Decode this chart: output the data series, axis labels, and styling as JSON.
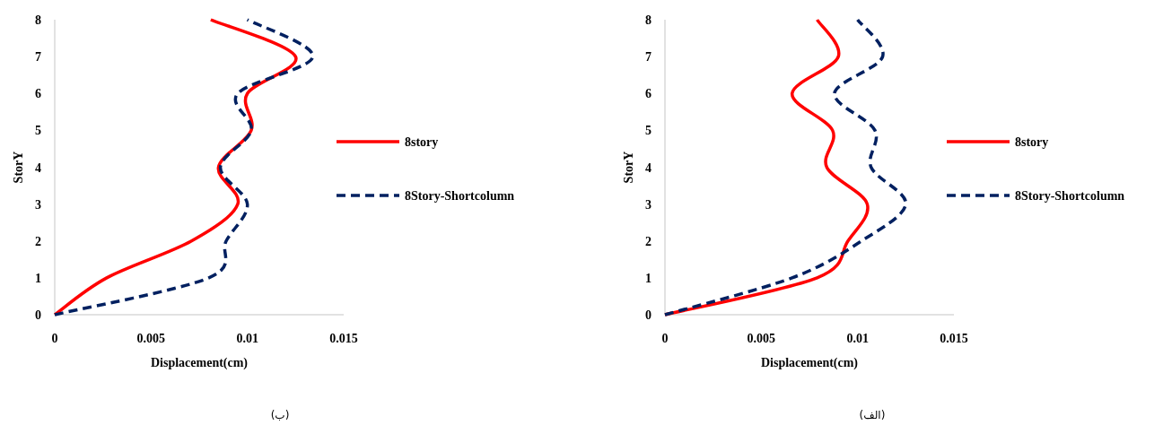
{
  "chart_data": [
    {
      "type": "line",
      "xlabel": "Displacement(cm)",
      "ylabel": "StorY",
      "xlim": [
        0,
        0.015
      ],
      "ylim": [
        0,
        8
      ],
      "xticks": [
        0,
        0.005,
        0.01,
        0.015
      ],
      "yticks": [
        0,
        1,
        2,
        3,
        4,
        5,
        6,
        7,
        8
      ],
      "legend": "right",
      "marker": "none",
      "grid": false,
      "annotations": [
        "(ب)"
      ],
      "series": [
        {
          "name": "8story",
          "color": "#ff0000",
          "line_style": "solid",
          "x": [
            0,
            0.0027,
            0.0071,
            0.0095,
            0.0085,
            0.0102,
            0.01,
            0.0125,
            0.0081
          ],
          "values": [
            0,
            1,
            2,
            3,
            4,
            5,
            6,
            7,
            8
          ]
        },
        {
          "name": "8Story-Shortcolumn",
          "color": "#002060",
          "line_style": "dashed",
          "x": [
            0,
            0.008,
            0.0089,
            0.01,
            0.0086,
            0.0102,
            0.0095,
            0.0134,
            0.01
          ],
          "values": [
            0,
            1,
            2,
            3,
            4,
            5,
            6,
            7,
            8
          ]
        }
      ]
    },
    {
      "type": "line",
      "xlabel": "Displacement(cm)",
      "ylabel": "StorY",
      "xlim": [
        0,
        0.015
      ],
      "ylim": [
        0,
        8
      ],
      "xticks": [
        0,
        0.005,
        0.01,
        0.015
      ],
      "yticks": [
        0,
        1,
        2,
        3,
        4,
        5,
        6,
        7,
        8
      ],
      "legend": "right",
      "marker": "none",
      "grid": false,
      "annotations": [
        "(الف)"
      ],
      "series": [
        {
          "name": "8story",
          "color": "#ff0000",
          "line_style": "solid",
          "x": [
            0,
            0.0079,
            0.0095,
            0.0105,
            0.0084,
            0.0087,
            0.0066,
            0.009,
            0.0079
          ],
          "values": [
            0,
            1,
            2,
            3,
            4,
            5,
            6,
            7,
            8
          ]
        },
        {
          "name": "8Story-Shortcolumn",
          "color": "#002060",
          "line_style": "dashed",
          "x": [
            0,
            0.0066,
            0.0102,
            0.0125,
            0.0107,
            0.0109,
            0.0088,
            0.0113,
            0.01
          ],
          "values": [
            0,
            1,
            2,
            3,
            4,
            5,
            6,
            7,
            8
          ]
        }
      ]
    }
  ]
}
